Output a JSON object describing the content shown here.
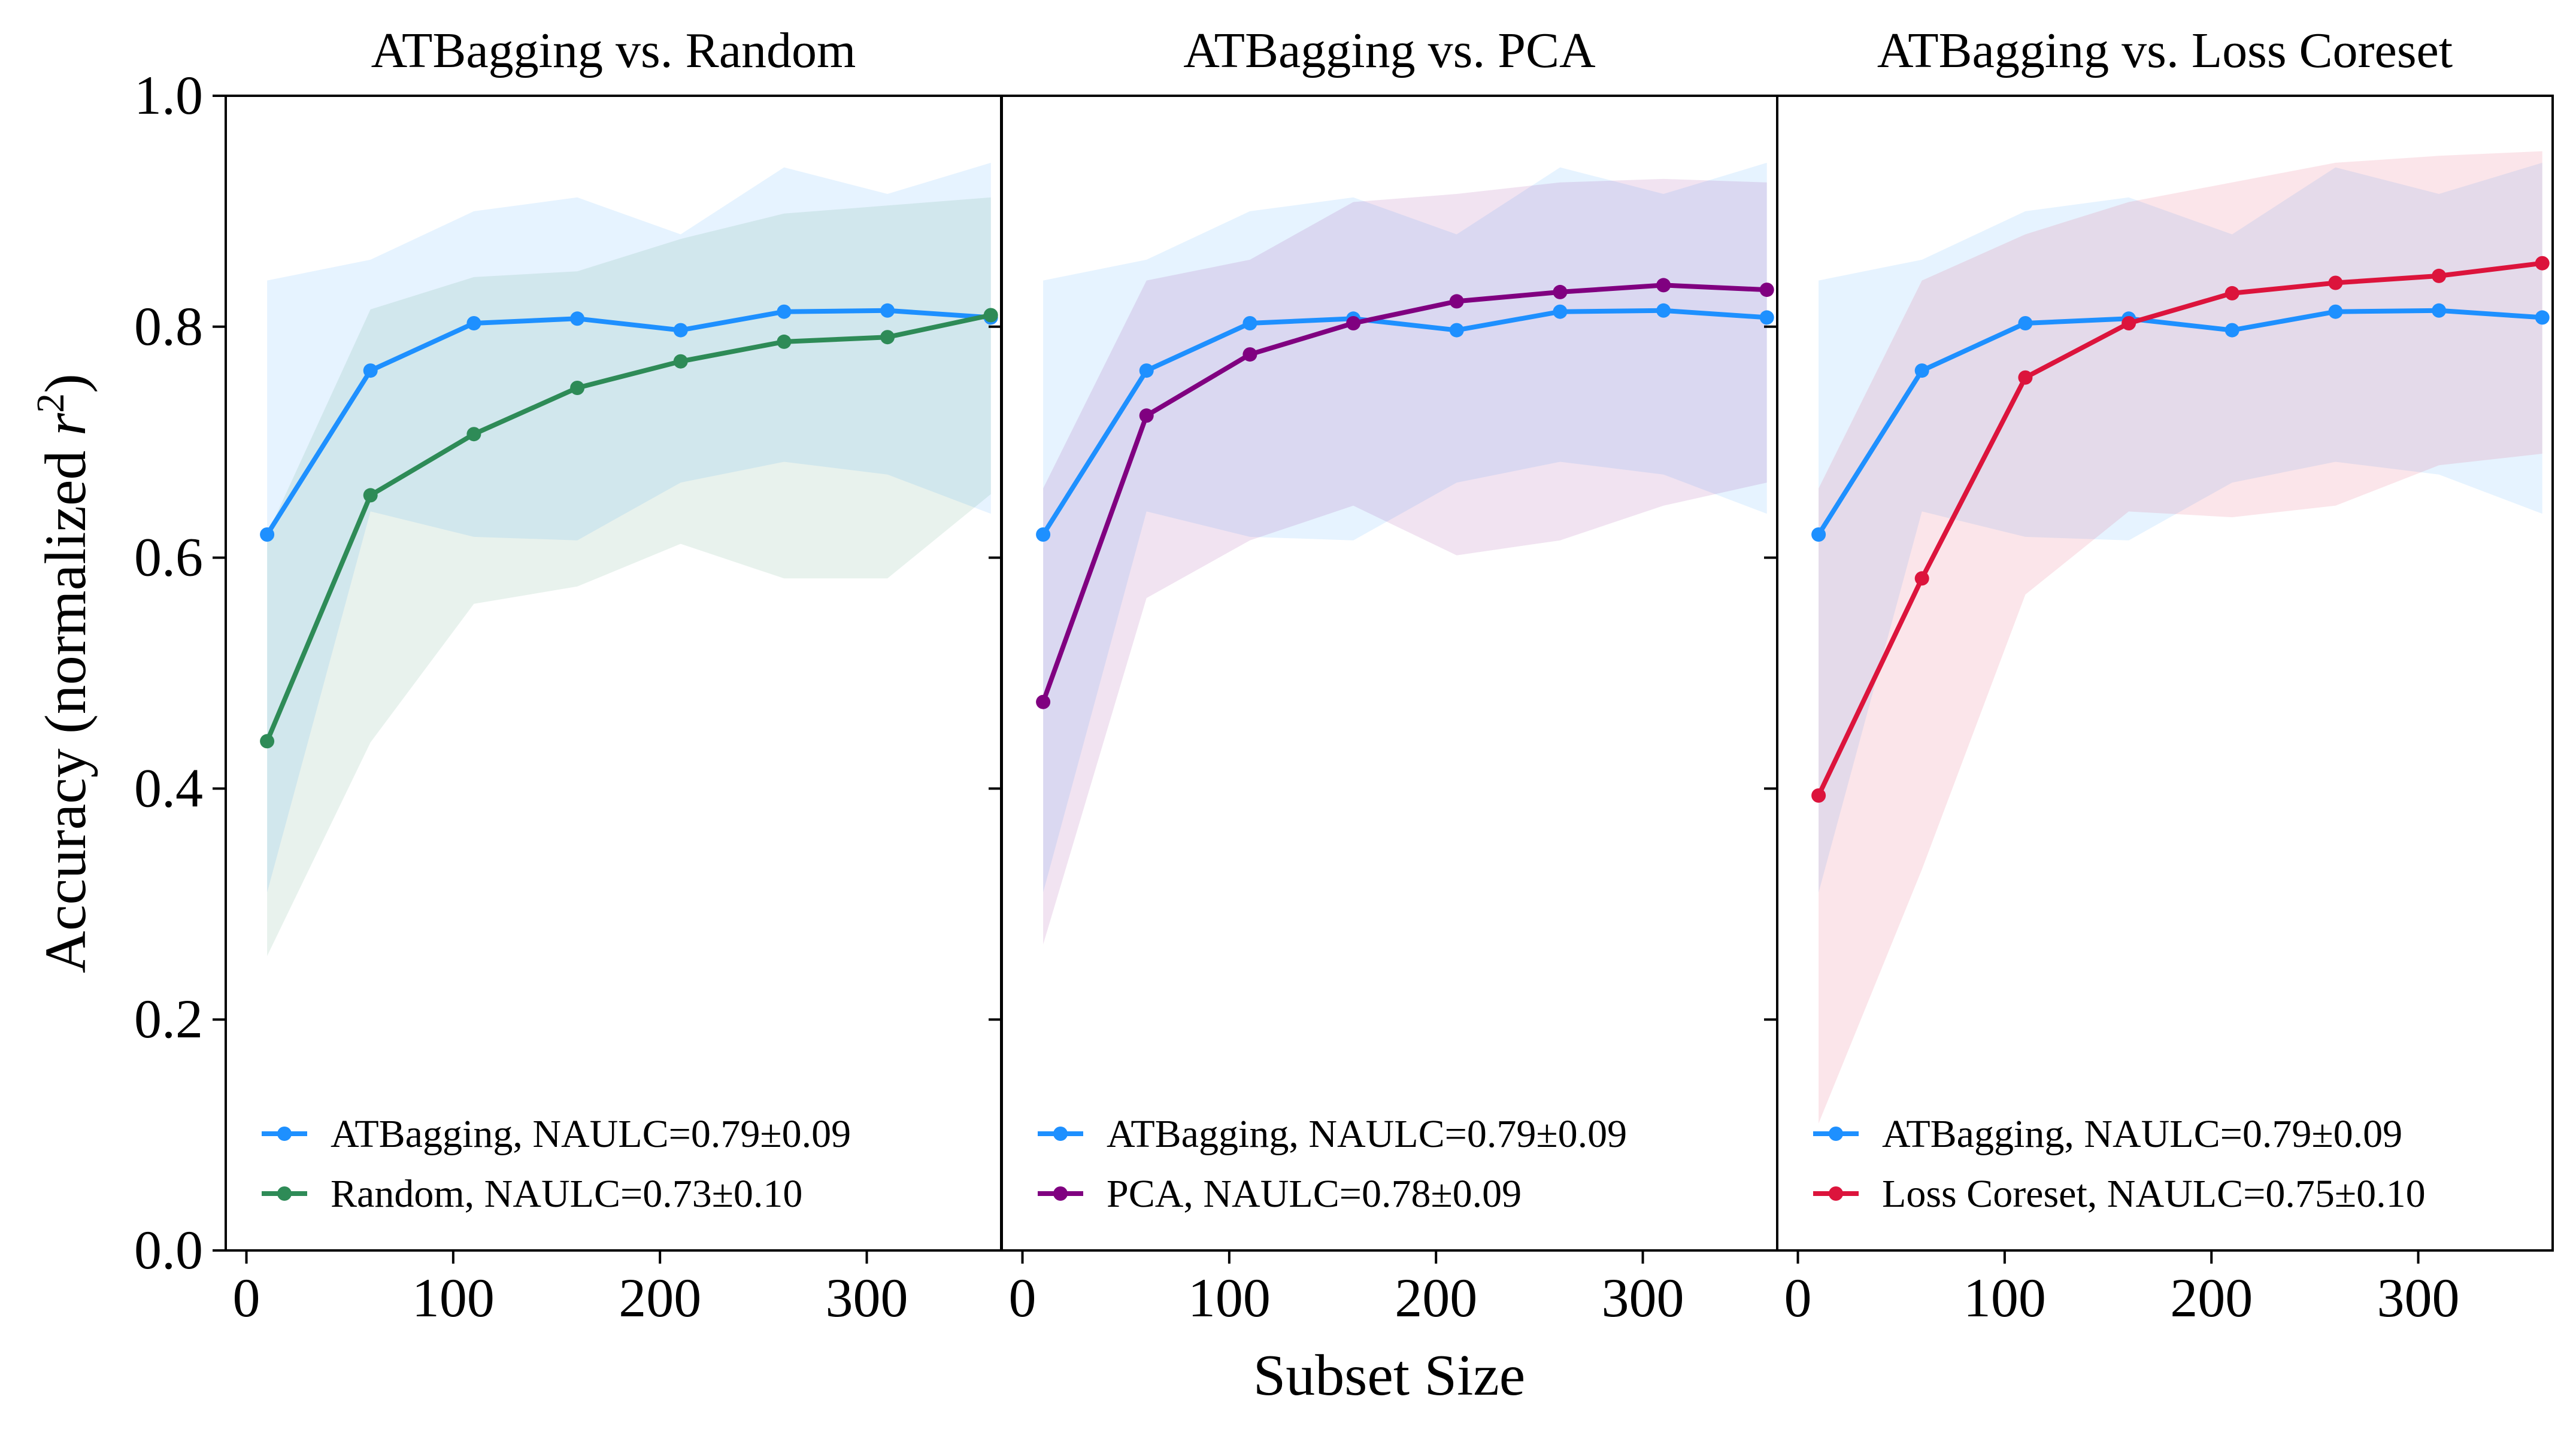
{
  "chart_data": {
    "type": "line",
    "xlabel": "Subset Size",
    "ylabel": "Accuracy (normalized r²)",
    "ylabel_parts": {
      "main": "Accuracy (normalized ",
      "var": "r",
      "sup": "2",
      "close": ")"
    },
    "x_ticks": [
      "0",
      "100",
      "200",
      "300"
    ],
    "y_ticks": [
      "0.0",
      "0.2",
      "0.4",
      "0.6",
      "0.8",
      "1.0"
    ],
    "xlim": [
      -10,
      365
    ],
    "ylim": [
      0,
      1
    ],
    "x": [
      10,
      60,
      110,
      160,
      210,
      260,
      310,
      360
    ],
    "colors": {
      "ATBagging": "#1e90ff",
      "Random": "#2e8b57",
      "PCA": "#800080",
      "Loss Coreset": "#dc143c"
    },
    "baseline": {
      "name": "ATBagging",
      "legend": "ATBagging, NAULC=0.79±0.09",
      "values": [
        0.62,
        0.762,
        0.803,
        0.807,
        0.797,
        0.813,
        0.814,
        0.808
      ],
      "lower": [
        0.31,
        0.64,
        0.618,
        0.615,
        0.665,
        0.683,
        0.672,
        0.638
      ],
      "upper": [
        0.84,
        0.858,
        0.9,
        0.912,
        0.88,
        0.938,
        0.915,
        0.942
      ]
    },
    "panels": [
      {
        "title": "ATBagging vs. Random",
        "compare": {
          "name": "Random",
          "legend": "Random, NAULC=0.73±0.10",
          "values": [
            0.441,
            0.654,
            0.707,
            0.747,
            0.77,
            0.787,
            0.791,
            0.81
          ],
          "lower": [
            0.255,
            0.44,
            0.56,
            0.575,
            0.612,
            0.582,
            0.582,
            0.655
          ],
          "upper": [
            0.62,
            0.815,
            0.843,
            0.848,
            0.876,
            0.898,
            0.905,
            0.912
          ]
        }
      },
      {
        "title": "ATBagging vs. PCA",
        "compare": {
          "name": "PCA",
          "legend": "PCA, NAULC=0.78±0.09",
          "values": [
            0.475,
            0.723,
            0.776,
            0.803,
            0.822,
            0.83,
            0.836,
            0.832
          ],
          "lower": [
            0.265,
            0.565,
            0.615,
            0.645,
            0.602,
            0.615,
            0.645,
            0.665
          ],
          "upper": [
            0.66,
            0.84,
            0.858,
            0.908,
            0.915,
            0.925,
            0.928,
            0.925
          ]
        }
      },
      {
        "title": "ATBagging vs. Loss Coreset",
        "compare": {
          "name": "Loss Coreset",
          "legend": "Loss Coreset, NAULC=0.75±0.10",
          "values": [
            0.394,
            0.582,
            0.756,
            0.803,
            0.829,
            0.838,
            0.844,
            0.855
          ],
          "lower": [
            0.11,
            0.33,
            0.568,
            0.64,
            0.635,
            0.645,
            0.68,
            0.69
          ],
          "upper": [
            0.66,
            0.84,
            0.88,
            0.908,
            0.925,
            0.942,
            0.948,
            0.952
          ]
        }
      }
    ]
  }
}
